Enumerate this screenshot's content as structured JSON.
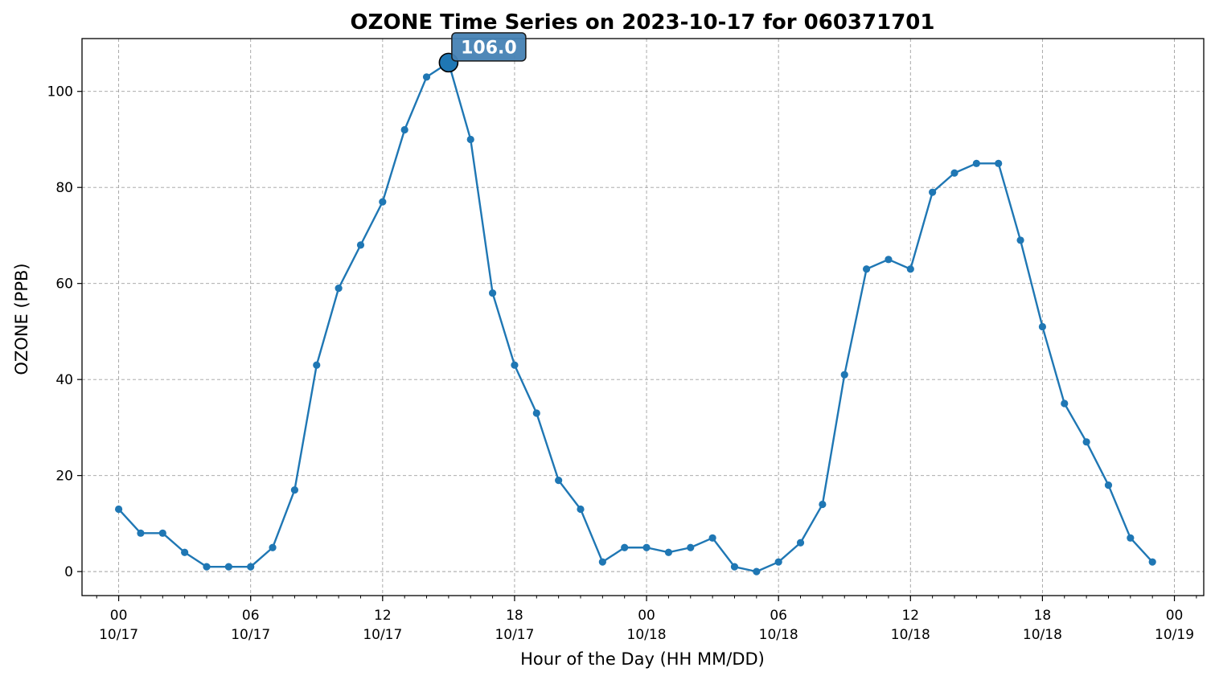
{
  "chart_data": {
    "type": "line",
    "title": "OZONE Time Series on 2023-10-17 for 060371701",
    "xlabel": "Hour of the Day (HH MM/DD)",
    "ylabel": "OZONE (PPB)",
    "xlim": [
      "2023-10-16 22:20",
      "2023-10-19 01:20"
    ],
    "ylim": [
      -5,
      111
    ],
    "yticks": [
      0,
      20,
      40,
      60,
      80,
      100
    ],
    "grid": true,
    "line_color": "#1f77b4",
    "annotation_box_color": "#4682b4",
    "x_ticks": [
      {
        "time": "2023-10-17 00:00",
        "hour": "00",
        "date": "10/17"
      },
      {
        "time": "2023-10-17 06:00",
        "hour": "06",
        "date": "10/17"
      },
      {
        "time": "2023-10-17 12:00",
        "hour": "12",
        "date": "10/17"
      },
      {
        "time": "2023-10-17 18:00",
        "hour": "18",
        "date": "10/17"
      },
      {
        "time": "2023-10-18 00:00",
        "hour": "00",
        "date": "10/18"
      },
      {
        "time": "2023-10-18 06:00",
        "hour": "06",
        "date": "10/18"
      },
      {
        "time": "2023-10-18 12:00",
        "hour": "12",
        "date": "10/18"
      },
      {
        "time": "2023-10-18 18:00",
        "hour": "18",
        "date": "10/18"
      },
      {
        "time": "2023-10-19 00:00",
        "hour": "00",
        "date": "10/19"
      }
    ],
    "series": [
      {
        "x_start": "2023-10-17 00:00",
        "x_step": "1 hour",
        "values": [
          13,
          8,
          8,
          4,
          1,
          1,
          1,
          5,
          17,
          43,
          59,
          68,
          77,
          92,
          103,
          106,
          90,
          58,
          43,
          33,
          19,
          13,
          2,
          5,
          5,
          4,
          5,
          7,
          1,
          0,
          2,
          6,
          14,
          41,
          63,
          65,
          63,
          79,
          83,
          85,
          85,
          69,
          51,
          35,
          27,
          18,
          7,
          2
        ]
      }
    ],
    "annotation": {
      "label": "106.0",
      "time": "2023-10-17 15:00",
      "value": 106
    }
  }
}
